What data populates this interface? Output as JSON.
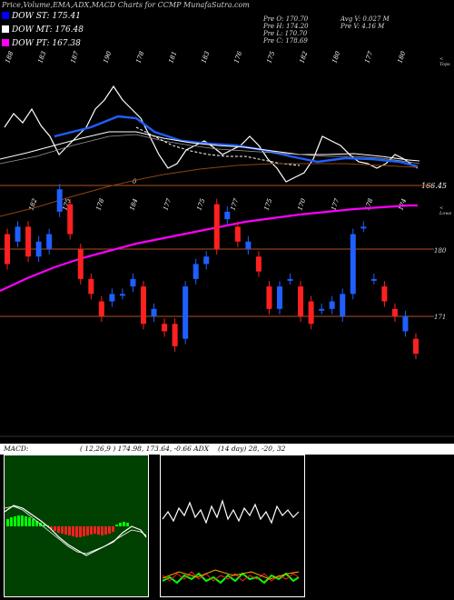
{
  "title": "Price,Volume,EMA,ADX,MACD Charts for CCMP MunafaSutra.com",
  "legend": [
    {
      "label": "DOW ST: 175.41",
      "color": "#0000ff"
    },
    {
      "label": "DOW MT: 176.48",
      "color": "#ffffff"
    },
    {
      "label": "DOW PT: 167.38",
      "color": "#ff00ff"
    }
  ],
  "info": {
    "prev_open": "Pre O: 170.70",
    "prev_high": "Pre H: 174.20",
    "prev_low": "Pre L: 170.70",
    "prev_close": "Pre C: 178.69",
    "avg_volume": "Avg V: 0.027 M",
    "prev_volume": "Pre V: 4.16 M"
  },
  "top_label": "< Tops",
  "lower_label": "< Lows",
  "last_price": "166.45",
  "ema_value": "0",
  "price_levels": [
    "180",
    "171"
  ],
  "indicators": {
    "macd_label": "MACD:",
    "macd_params": "( 12,26,9 ) 174.98, 173.64, -0.66 ADX",
    "adx_params": "(14 day) 28, -20, 32"
  },
  "colors": {
    "up": "#1f5fff",
    "down": "#ff2020",
    "pink": "#ff00ff",
    "brown": "#8b4513"
  },
  "chart_data": {
    "type": "line",
    "title": "Price,Volume,EMA,ADX,MACD Charts for CCMP MunafaSutra.com",
    "top_labels": [
      "188",
      "183",
      "187",
      "190",
      "178",
      "181",
      "183",
      "176",
      "175",
      "182",
      "180",
      "177",
      "180"
    ],
    "low_labels": [
      "182",
      "175",
      "178",
      "184",
      "177",
      "175",
      "177",
      "175",
      "170",
      "177",
      "178",
      "174"
    ],
    "candles": [
      {
        "o": 182,
        "c": 178
      },
      {
        "o": 181,
        "c": 183
      },
      {
        "o": 183,
        "c": 179
      },
      {
        "o": 179,
        "c": 181
      },
      {
        "o": 180,
        "c": 182
      },
      {
        "o": 185,
        "c": 188
      },
      {
        "o": 186,
        "c": 182
      },
      {
        "o": 180,
        "c": 176
      },
      {
        "o": 176,
        "c": 174
      },
      {
        "o": 173,
        "c": 171
      },
      {
        "o": 173,
        "c": 174
      },
      {
        "o": 174,
        "c": 174
      },
      {
        "o": 175,
        "c": 176
      },
      {
        "o": 175,
        "c": 170
      },
      {
        "o": 171,
        "c": 172
      },
      {
        "o": 170,
        "c": 169
      },
      {
        "o": 170,
        "c": 167
      },
      {
        "o": 168,
        "c": 175
      },
      {
        "o": 176,
        "c": 178
      },
      {
        "o": 178,
        "c": 179
      },
      {
        "o": 186,
        "c": 180
      },
      {
        "o": 184,
        "c": 185
      },
      {
        "o": 183,
        "c": 181
      },
      {
        "o": 180,
        "c": 181
      },
      {
        "o": 179,
        "c": 177
      },
      {
        "o": 175,
        "c": 172
      },
      {
        "o": 172,
        "c": 175
      },
      {
        "o": 176,
        "c": 176
      },
      {
        "o": 175,
        "c": 171
      },
      {
        "o": 173,
        "c": 170
      },
      {
        "o": 172,
        "c": 172
      },
      {
        "o": 172,
        "c": 173
      },
      {
        "o": 171,
        "c": 174
      },
      {
        "o": 174,
        "c": 182
      },
      {
        "o": 183,
        "c": 183
      },
      {
        "o": 176,
        "c": 176
      },
      {
        "o": 175,
        "c": 173
      },
      {
        "o": 172,
        "c": 171
      },
      {
        "o": 169,
        "c": 171
      },
      {
        "o": 168,
        "c": 166
      }
    ]
  }
}
